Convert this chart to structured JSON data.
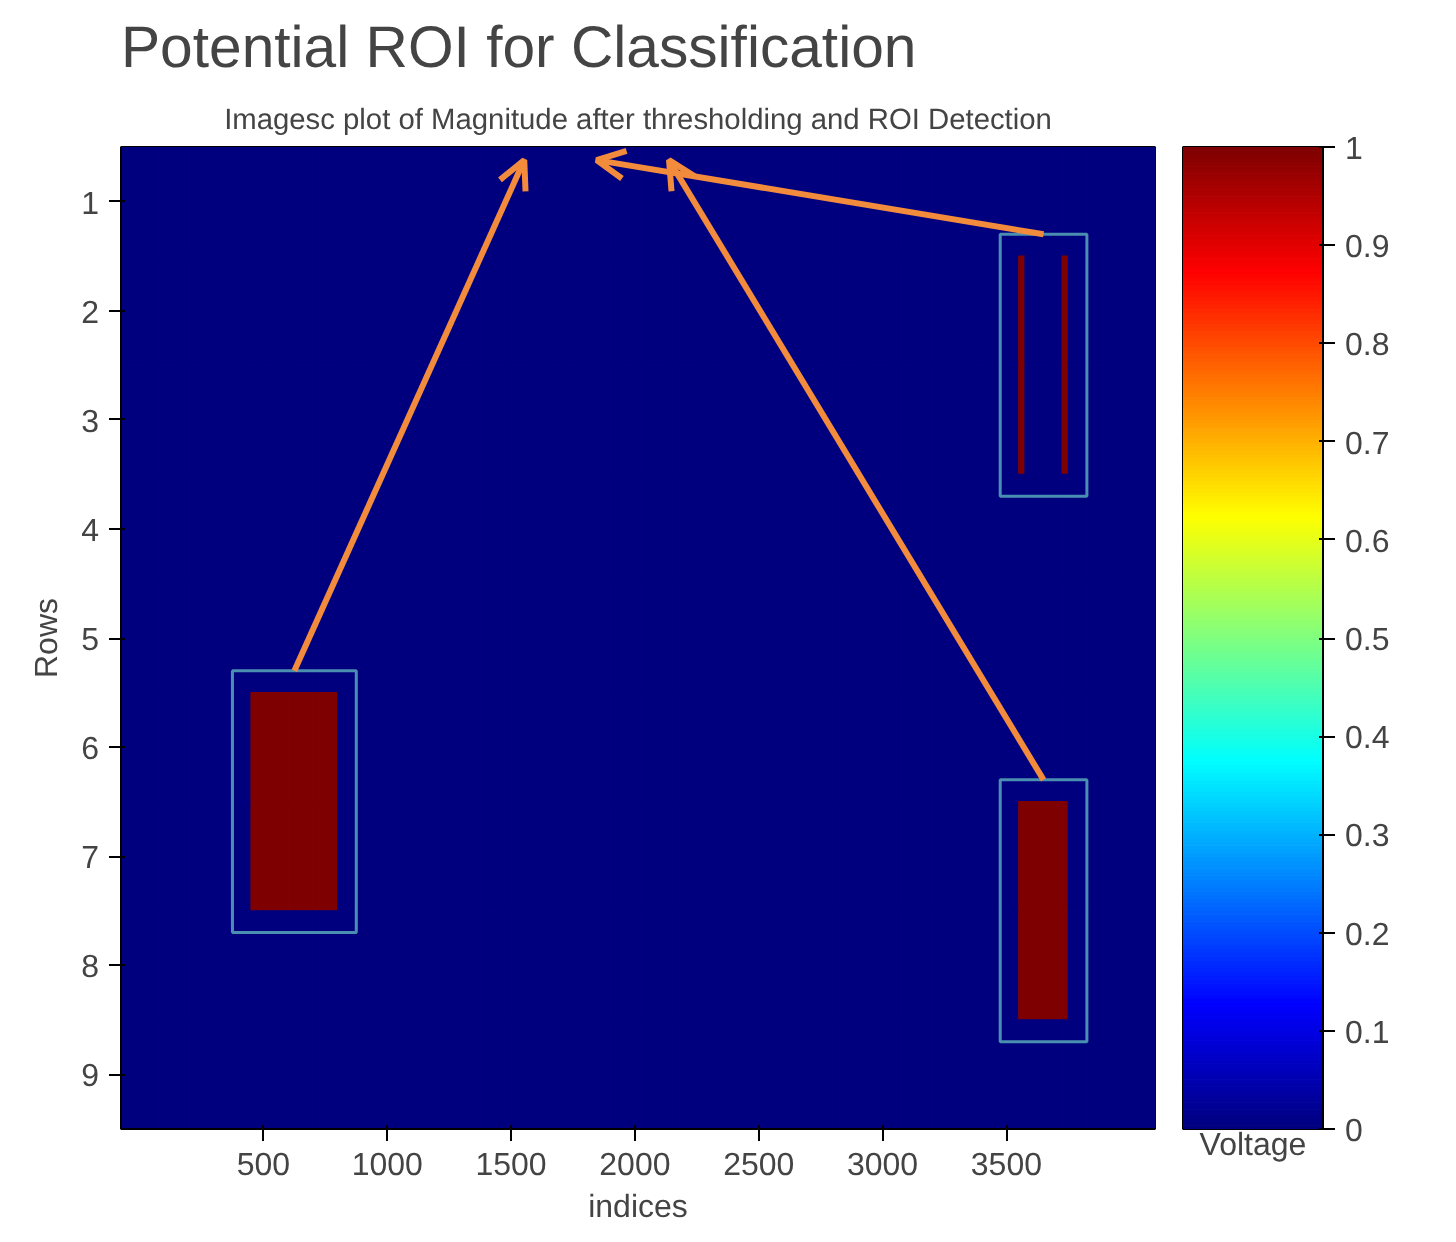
{
  "chart_data": {
    "type": "heatmap",
    "title": "Imagesc plot of Magnitude after thresholding and ROI Detection",
    "xlabel": "indices",
    "ylabel": "Rows",
    "clabel": "Voltage",
    "annotations": [
      "Potential ROI for Classification"
    ],
    "xlim": [
      -75,
      4100
    ],
    "xticks": [
      500,
      1000,
      1500,
      2000,
      2500,
      3000,
      3500
    ],
    "clim": [
      0,
      1
    ],
    "cticks": [
      0,
      0.1,
      0.2,
      0.3,
      0.4,
      0.5,
      0.6,
      0.7,
      0.8,
      0.9,
      1
    ],
    "y_categories": [
      "1",
      "2",
      "3",
      "4",
      "5",
      "6",
      "7",
      "8",
      "9"
    ],
    "x": [
      -62.5,
      -37.5,
      -12.5,
      12.5,
      37.5,
      62.5,
      87.5,
      112.5,
      137.5,
      162.5,
      187.5,
      212.5,
      237.5,
      262.5,
      287.5,
      312.5,
      337.5,
      362.5,
      387.5,
      412.5,
      437.5,
      462.5,
      487.5,
      512.5,
      537.5,
      562.5,
      587.5,
      612.5,
      637.5,
      662.5,
      687.5,
      712.5,
      737.5,
      762.5,
      787.5,
      812.5,
      837.5,
      862.5,
      887.5,
      912.5,
      937.5,
      962.5,
      987.5,
      1012.5,
      1037.5,
      1062.5,
      1087.5,
      1112.5,
      1137.5,
      1162.5,
      1187.5,
      1212.5,
      1237.5,
      1262.5,
      1287.5,
      1312.5,
      1337.5,
      1362.5,
      1387.5,
      1412.5,
      1437.5,
      1462.5,
      1487.5,
      1512.5,
      1537.5,
      1562.5,
      1587.5,
      1612.5,
      1637.5,
      1662.5,
      1687.5,
      1712.5,
      1737.5,
      1762.5,
      1787.5,
      1812.5,
      1837.5,
      1862.5,
      1887.5,
      1912.5,
      1937.5,
      1962.5,
      1987.5,
      2012.5,
      2037.5,
      2062.5,
      2087.5,
      2112.5,
      2137.5,
      2162.5,
      2187.5,
      2212.5,
      2237.5,
      2262.5,
      2287.5,
      2312.5,
      2337.5,
      2362.5,
      2387.5,
      2412.5,
      2437.5,
      2462.5,
      2487.5,
      2512.5,
      2537.5,
      2562.5,
      2587.5,
      2612.5,
      2637.5,
      2662.5,
      2687.5,
      2712.5,
      2737.5,
      2762.5,
      2787.5,
      2812.5,
      2837.5,
      2862.5,
      2887.5,
      2912.5,
      2937.5,
      2962.5,
      2987.5,
      3012.5,
      3037.5,
      3062.5,
      3087.5,
      3112.5,
      3137.5,
      3162.5,
      3187.5,
      3212.5,
      3237.5,
      3262.5,
      3287.5,
      3312.5,
      3337.5,
      3362.5,
      3387.5,
      3412.5,
      3437.5,
      3462.5,
      3487.5,
      3512.5,
      3537.5,
      3562.5,
      3587.5,
      3612.5,
      3637.5,
      3662.5,
      3687.5,
      3712.5,
      3737.5,
      3762.5,
      3787.5,
      3812.5,
      3837.5,
      3862.5,
      3887.5,
      3912.5,
      3937.5,
      3962.5,
      3987.5,
      4012.5,
      4037.5,
      4062.5,
      4087.5
    ],
    "cells": [
      [
        0,
        0,
        0,
        0,
        0,
        0,
        0,
        0,
        0,
        0,
        0,
        0,
        0,
        0,
        0,
        0,
        0,
        0,
        0,
        0,
        0,
        0,
        0,
        0,
        0,
        0,
        0,
        0,
        0,
        0,
        0,
        0,
        0,
        0,
        0,
        0,
        0,
        0,
        0,
        0,
        0,
        0,
        0,
        0,
        0,
        0,
        0,
        0,
        0,
        0,
        0,
        0,
        0,
        0,
        0,
        0,
        0,
        0,
        0,
        0,
        0,
        0,
        0,
        0,
        0,
        0,
        0,
        0,
        0,
        0,
        0,
        0,
        0,
        0,
        0,
        0,
        0,
        0,
        0,
        0,
        0,
        0,
        0,
        0,
        0,
        0,
        0,
        0,
        0,
        0,
        0,
        0,
        0,
        0,
        0,
        0,
        0,
        0,
        0,
        0,
        0,
        0,
        0,
        0,
        0,
        0,
        0,
        0,
        0,
        0,
        0,
        0,
        0,
        0,
        0,
        0,
        0,
        0,
        0,
        0,
        0,
        0,
        0,
        0,
        0,
        0,
        0,
        0,
        0,
        0,
        0,
        0,
        0,
        0,
        0,
        0,
        0,
        0,
        0,
        0,
        0,
        0,
        0,
        0,
        0,
        0,
        0,
        0,
        0,
        0,
        0,
        0,
        0,
        0,
        0,
        0,
        0,
        0,
        0,
        0,
        0,
        0,
        0,
        0,
        0,
        0,
        0
      ],
      [
        0,
        0,
        0,
        0,
        0,
        0,
        0,
        0,
        0,
        0,
        0,
        0,
        0,
        0,
        0,
        0,
        0,
        0,
        0,
        0,
        0,
        0,
        0,
        0,
        0,
        0,
        0,
        0,
        0,
        0,
        0,
        0,
        0,
        0,
        0,
        0,
        0,
        0,
        0,
        0,
        0,
        0,
        0,
        0,
        0,
        0,
        0,
        0,
        0,
        0,
        0,
        0,
        0,
        0,
        0,
        0,
        0,
        0,
        0,
        0,
        0,
        0,
        0,
        0,
        0,
        0,
        0,
        0,
        0,
        0,
        0,
        0,
        0,
        0,
        0,
        0,
        0,
        0,
        0,
        0,
        0,
        0,
        0,
        0,
        0,
        0,
        0,
        0,
        0,
        0,
        0,
        0,
        0,
        0,
        0,
        0,
        0,
        0,
        0,
        0,
        0,
        0,
        0,
        0,
        0,
        0,
        0,
        0,
        0,
        0,
        0,
        0,
        0,
        0,
        0,
        0,
        0,
        0,
        0,
        0,
        0,
        0,
        0,
        0,
        0,
        0,
        0,
        0,
        0,
        0,
        0,
        0,
        0,
        0,
        0,
        0,
        0,
        0,
        0,
        0,
        0,
        0,
        0,
        0,
        0,
        1,
        0,
        0,
        0,
        0,
        0,
        0,
        1,
        0,
        0,
        0,
        0,
        0,
        0,
        0,
        0,
        0,
        0,
        0,
        0,
        0,
        0
      ],
      [
        0,
        0,
        0,
        0,
        0,
        0,
        0,
        0,
        0,
        0,
        0,
        0,
        0,
        0,
        0,
        0,
        0,
        0,
        0,
        0,
        0,
        0,
        0,
        0,
        0,
        0,
        0,
        0,
        0,
        0,
        0,
        0,
        0,
        0,
        0,
        0,
        0,
        0,
        0,
        0,
        0,
        0,
        0,
        0,
        0,
        0,
        0,
        0,
        0,
        0,
        0,
        0,
        0,
        0,
        0,
        0,
        0,
        0,
        0,
        0,
        0,
        0,
        0,
        0,
        0,
        0,
        0,
        0,
        0,
        0,
        0,
        0,
        0,
        0,
        0,
        0,
        0,
        0,
        0,
        0,
        0,
        0,
        0,
        0,
        0,
        0,
        0,
        0,
        0,
        0,
        0,
        0,
        0,
        0,
        0,
        0,
        0,
        0,
        0,
        0,
        0,
        0,
        0,
        0,
        0,
        0,
        0,
        0,
        0,
        0,
        0,
        0,
        0,
        0,
        0,
        0,
        0,
        0,
        0,
        0,
        0,
        0,
        0,
        0,
        0,
        0,
        0,
        0,
        0,
        0,
        0,
        0,
        0,
        0,
        0,
        0,
        0,
        0,
        0,
        0,
        0,
        0,
        0,
        0,
        0,
        1,
        0,
        0,
        0,
        0,
        0,
        0,
        1,
        0,
        0,
        0,
        0,
        0,
        0,
        0,
        0,
        0,
        0,
        0,
        0,
        0,
        0
      ],
      [
        0,
        0,
        0,
        0,
        0,
        0,
        0,
        0,
        0,
        0,
        0,
        0,
        0,
        0,
        0,
        0,
        0,
        0,
        0,
        0,
        0,
        0,
        0,
        0,
        0,
        0,
        0,
        0,
        0,
        0,
        0,
        0,
        0,
        0,
        0,
        0,
        0,
        0,
        0,
        0,
        0,
        0,
        0,
        0,
        0,
        0,
        0,
        0,
        0,
        0,
        0,
        0,
        0,
        0,
        0,
        0,
        0,
        0,
        0,
        0,
        0,
        0,
        0,
        0,
        0,
        0,
        0,
        0,
        0,
        0,
        0,
        0,
        0,
        0,
        0,
        0,
        0,
        0,
        0,
        0,
        0,
        0,
        0,
        0,
        0,
        0,
        0,
        0,
        0,
        0,
        0,
        0,
        0,
        0,
        0,
        0,
        0,
        0,
        0,
        0,
        0,
        0,
        0,
        0,
        0,
        0,
        0,
        0,
        0,
        0,
        0,
        0,
        0,
        0,
        0,
        0,
        0,
        0,
        0,
        0,
        0,
        0,
        0,
        0,
        0,
        0,
        0,
        0,
        0,
        0,
        0,
        0,
        0,
        0,
        0,
        0,
        0,
        0,
        0,
        0,
        0,
        0,
        0,
        0,
        0,
        0,
        0,
        0,
        0,
        0,
        0,
        0,
        0,
        0,
        0,
        0,
        0,
        0,
        0,
        0,
        0,
        0,
        0,
        0,
        0,
        0,
        0
      ],
      [
        0,
        0,
        0,
        0,
        0,
        0,
        0,
        0,
        0,
        0,
        0,
        0,
        0,
        0,
        0,
        0,
        0,
        0,
        0,
        0,
        0,
        0,
        0,
        0,
        0,
        0,
        0,
        0,
        0,
        0,
        0,
        0,
        0,
        0,
        0,
        0,
        0,
        0,
        0,
        0,
        0,
        0,
        0,
        0,
        0,
        0,
        0,
        0,
        0,
        0,
        0,
        0,
        0,
        0,
        0,
        0,
        0,
        0,
        0,
        0,
        0,
        0,
        0,
        0,
        0,
        0,
        0,
        0,
        0,
        0,
        0,
        0,
        0,
        0,
        0,
        0,
        0,
        0,
        0,
        0,
        0,
        0,
        0,
        0,
        0,
        0,
        0,
        0,
        0,
        0,
        0,
        0,
        0,
        0,
        0,
        0,
        0,
        0,
        0,
        0,
        0,
        0,
        0,
        0,
        0,
        0,
        0,
        0,
        0,
        0,
        0,
        0,
        0,
        0,
        0,
        0,
        0,
        0,
        0,
        0,
        0,
        0,
        0,
        0,
        0,
        0,
        0,
        0,
        0,
        0,
        0,
        0,
        0,
        0,
        0,
        0,
        0,
        0,
        0,
        0,
        0,
        0,
        0,
        0,
        0,
        0,
        0,
        0,
        0,
        0,
        0,
        0,
        0,
        0,
        0,
        0,
        0,
        0,
        0,
        0,
        0,
        0,
        0,
        0,
        0,
        0,
        0
      ],
      [
        0,
        0,
        0,
        0,
        0,
        0,
        0,
        0,
        0,
        0,
        0,
        0,
        0,
        0,
        0,
        0,
        0,
        0,
        0,
        0,
        0,
        1,
        1,
        1,
        1,
        1,
        1,
        1,
        1,
        1,
        1,
        1,
        1,
        1,
        1,
        0,
        0,
        0,
        0,
        0,
        0,
        0,
        0,
        0,
        0,
        0,
        0,
        0,
        0,
        0,
        0,
        0,
        0,
        0,
        0,
        0,
        0,
        0,
        0,
        0,
        0,
        0,
        0,
        0,
        0,
        0,
        0,
        0,
        0,
        0,
        0,
        0,
        0,
        0,
        0,
        0,
        0,
        0,
        0,
        0,
        0,
        0,
        0,
        0,
        0,
        0,
        0,
        0,
        0,
        0,
        0,
        0,
        0,
        0,
        0,
        0,
        0,
        0,
        0,
        0,
        0,
        0,
        0,
        0,
        0,
        0,
        0,
        0,
        0,
        0,
        0,
        0,
        0,
        0,
        0,
        0,
        0,
        0,
        0,
        0,
        0,
        0,
        0,
        0,
        0,
        0,
        0,
        0,
        0,
        0,
        0,
        0,
        0,
        0,
        0,
        0,
        0,
        0,
        0,
        0,
        0,
        0,
        0,
        0,
        0,
        0,
        0,
        0,
        0,
        0,
        0,
        0,
        0,
        0,
        0,
        0,
        0,
        0,
        0,
        0,
        0,
        0,
        0,
        0,
        0,
        0,
        0
      ],
      [
        0,
        0,
        0,
        0,
        0,
        0,
        0,
        0,
        0,
        0,
        0,
        0,
        0,
        0,
        0,
        0,
        0,
        0,
        0,
        0,
        0,
        1,
        1,
        1,
        1,
        1,
        1,
        1,
        1,
        1,
        1,
        1,
        1,
        1,
        1,
        0,
        0,
        0,
        0,
        0,
        0,
        0,
        0,
        0,
        0,
        0,
        0,
        0,
        0,
        0,
        0,
        0,
        0,
        0,
        0,
        0,
        0,
        0,
        0,
        0,
        0,
        0,
        0,
        0,
        0,
        0,
        0,
        0,
        0,
        0,
        0,
        0,
        0,
        0,
        0,
        0,
        0,
        0,
        0,
        0,
        0,
        0,
        0,
        0,
        0,
        0,
        0,
        0,
        0,
        0,
        0,
        0,
        0,
        0,
        0,
        0,
        0,
        0,
        0,
        0,
        0,
        0,
        0,
        0,
        0,
        0,
        0,
        0,
        0,
        0,
        0,
        0,
        0,
        0,
        0,
        0,
        0,
        0,
        0,
        0,
        0,
        0,
        0,
        0,
        0,
        0,
        0,
        0,
        0,
        0,
        0,
        0,
        0,
        0,
        0,
        0,
        0,
        0,
        0,
        0,
        0,
        0,
        0,
        0,
        0,
        1,
        1,
        1,
        1,
        1,
        1,
        1,
        1,
        0,
        0,
        0,
        0,
        0,
        0,
        0,
        0,
        0,
        0,
        0,
        0,
        0,
        0
      ],
      [
        0,
        0,
        0,
        0,
        0,
        0,
        0,
        0,
        0,
        0,
        0,
        0,
        0,
        0,
        0,
        0,
        0,
        0,
        0,
        0,
        0,
        0,
        0,
        0,
        0,
        0,
        0,
        0,
        0,
        0,
        0,
        0,
        0,
        0,
        0,
        0,
        0,
        0,
        0,
        0,
        0,
        0,
        0,
        0,
        0,
        0,
        0,
        0,
        0,
        0,
        0,
        0,
        0,
        0,
        0,
        0,
        0,
        0,
        0,
        0,
        0,
        0,
        0,
        0,
        0,
        0,
        0,
        0,
        0,
        0,
        0,
        0,
        0,
        0,
        0,
        0,
        0,
        0,
        0,
        0,
        0,
        0,
        0,
        0,
        0,
        0,
        0,
        0,
        0,
        0,
        0,
        0,
        0,
        0,
        0,
        0,
        0,
        0,
        0,
        0,
        0,
        0,
        0,
        0,
        0,
        0,
        0,
        0,
        0,
        0,
        0,
        0,
        0,
        0,
        0,
        0,
        0,
        0,
        0,
        0,
        0,
        0,
        0,
        0,
        0,
        0,
        0,
        0,
        0,
        0,
        0,
        0,
        0,
        0,
        0,
        0,
        0,
        0,
        0,
        0,
        0,
        0,
        0,
        0,
        0,
        1,
        1,
        1,
        1,
        1,
        1,
        1,
        1,
        0,
        0,
        0,
        0,
        0,
        0,
        0,
        0,
        0,
        0,
        0,
        0,
        0,
        0
      ],
      [
        0,
        0,
        0,
        0,
        0,
        0,
        0,
        0,
        0,
        0,
        0,
        0,
        0,
        0,
        0,
        0,
        0,
        0,
        0,
        0,
        0,
        0,
        0,
        0,
        0,
        0,
        0,
        0,
        0,
        0,
        0,
        0,
        0,
        0,
        0,
        0,
        0,
        0,
        0,
        0,
        0,
        0,
        0,
        0,
        0,
        0,
        0,
        0,
        0,
        0,
        0,
        0,
        0,
        0,
        0,
        0,
        0,
        0,
        0,
        0,
        0,
        0,
        0,
        0,
        0,
        0,
        0,
        0,
        0,
        0,
        0,
        0,
        0,
        0,
        0,
        0,
        0,
        0,
        0,
        0,
        0,
        0,
        0,
        0,
        0,
        0,
        0,
        0,
        0,
        0,
        0,
        0,
        0,
        0,
        0,
        0,
        0,
        0,
        0,
        0,
        0,
        0,
        0,
        0,
        0,
        0,
        0,
        0,
        0,
        0,
        0,
        0,
        0,
        0,
        0,
        0,
        0,
        0,
        0,
        0,
        0,
        0,
        0,
        0,
        0,
        0,
        0,
        0,
        0,
        0,
        0,
        0,
        0,
        0,
        0,
        0,
        0,
        0,
        0,
        0,
        0,
        0,
        0,
        0,
        0,
        0,
        0,
        0,
        0,
        0,
        0,
        0,
        0,
        0,
        0,
        0,
        0,
        0,
        0,
        0,
        0,
        0,
        0,
        0,
        0,
        0,
        0
      ]
    ]
  }
}
